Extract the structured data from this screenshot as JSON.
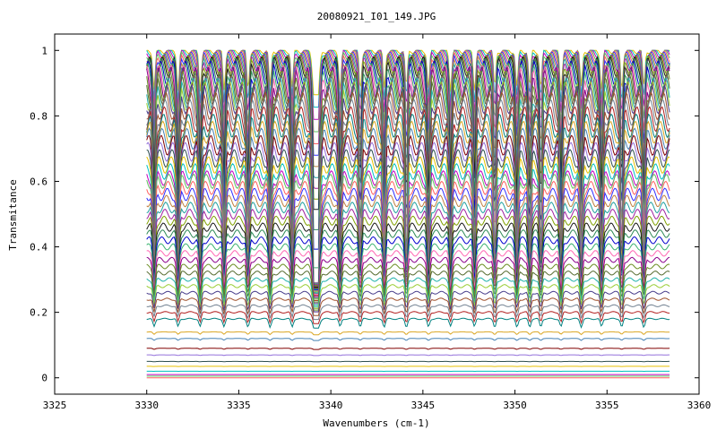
{
  "chart_data": {
    "type": "line",
    "title": "20080921_I01_149.JPG",
    "xlabel": "Wavenumbers (cm-1)",
    "ylabel": "Transmitance",
    "xlim": [
      3325,
      3360
    ],
    "ylim": [
      -0.05,
      1.05
    ],
    "x_ticks": [
      "3325",
      "3330",
      "3335",
      "3340",
      "3345",
      "3350",
      "3355",
      "3360"
    ],
    "y_ticks": [
      "0",
      "0.2",
      "0.4",
      "0.6",
      "0.8",
      "1"
    ],
    "grid": false,
    "legend": "none",
    "x_range_data": [
      3330,
      3358.4
    ],
    "absorption_lines": [
      3330.4,
      3331.7,
      3332.9,
      3334.2,
      3335.5,
      3336.7,
      3337.9,
      3339.2,
      3340.5,
      3341.6,
      3342.9,
      3344.1,
      3345.3,
      3346.5,
      3347.8,
      3348.9,
      3350.1,
      3350.8,
      3351.4,
      3352.5,
      3353.6,
      3354.7,
      3355.8,
      3357.0
    ],
    "series_baselines": [
      1.0,
      0.995,
      0.99,
      0.985,
      0.98,
      0.975,
      0.97,
      0.965,
      0.96,
      0.955,
      0.95,
      0.94,
      0.93,
      0.92,
      0.91,
      0.9,
      0.89,
      0.88,
      0.87,
      0.86,
      0.85,
      0.83,
      0.81,
      0.79,
      0.77,
      0.75,
      0.73,
      0.71,
      0.69,
      0.67,
      0.65,
      0.63,
      0.61,
      0.6,
      0.58,
      0.56,
      0.54,
      0.52,
      0.5,
      0.48,
      0.46,
      0.44,
      0.42,
      0.4,
      0.38,
      0.36,
      0.34,
      0.32,
      0.3,
      0.28,
      0.26,
      0.24,
      0.22,
      0.2,
      0.18,
      0.14,
      0.12,
      0.09,
      0.07,
      0.05,
      0.035,
      0.02,
      0.01,
      0.005,
      0.0
    ],
    "series_colors": [
      "#e6c000",
      "#00c0c0",
      "#c000c0",
      "#60c060",
      "#ff6060",
      "#3030ff",
      "#c08040",
      "#20a0a0",
      "#a020a0",
      "#80a000",
      "#1a1a1a",
      "#2e8b57",
      "#0000cc",
      "#3cb371",
      "#ff69b4",
      "#8b008b",
      "#6b8e23",
      "#556b2f",
      "#20b2aa",
      "#9acd32",
      "#483d8b",
      "#a0522d",
      "#708090",
      "#b22222",
      "#008080",
      "#daa520",
      "#4682b4",
      "#800000",
      "#9370db",
      "#2f4f4f"
    ]
  }
}
